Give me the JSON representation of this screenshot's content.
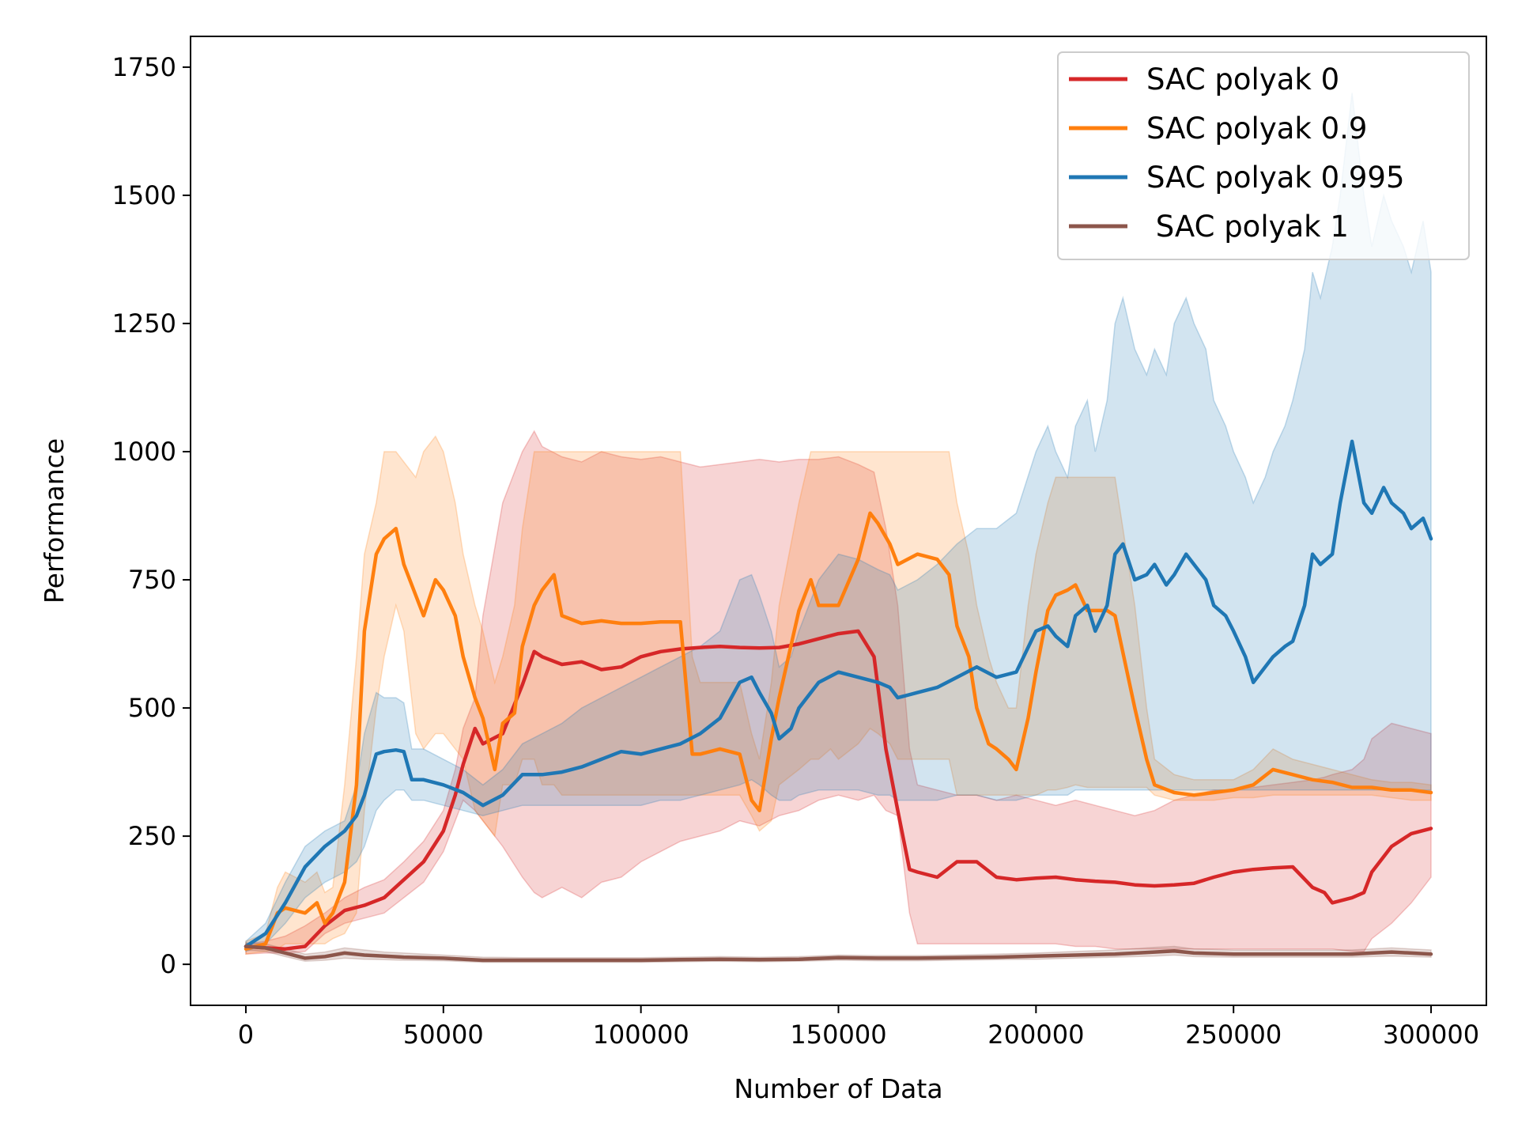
{
  "chart_data": {
    "type": "line",
    "title": "",
    "xlabel": "Number of Data",
    "ylabel": "Performance",
    "xlim": [
      -14000,
      314000
    ],
    "ylim": [
      -80,
      1810
    ],
    "xticks": [
      0,
      50000,
      100000,
      150000,
      200000,
      250000,
      300000
    ],
    "xtick_labels": [
      "0",
      "50000",
      "100000",
      "150000",
      "200000",
      "250000",
      "300000"
    ],
    "yticks": [
      0,
      250,
      500,
      750,
      1000,
      1250,
      1500,
      1750
    ],
    "ytick_labels": [
      "0",
      "250",
      "500",
      "750",
      "1000",
      "1250",
      "1500",
      "1750"
    ],
    "grid": false,
    "legend_position": "top-right",
    "series": [
      {
        "name": "SAC polyak 0",
        "color": "#d62728",
        "x": [
          0,
          5000,
          10000,
          15000,
          20000,
          25000,
          30000,
          35000,
          40000,
          45000,
          50000,
          53000,
          55000,
          58000,
          60000,
          65000,
          70000,
          73000,
          75000,
          80000,
          85000,
          90000,
          95000,
          100000,
          105000,
          110000,
          115000,
          120000,
          125000,
          130000,
          135000,
          140000,
          145000,
          150000,
          155000,
          159000,
          162000,
          165000,
          168000,
          170000,
          175000,
          180000,
          185000,
          190000,
          195000,
          200000,
          205000,
          210000,
          215000,
          220000,
          225000,
          230000,
          235000,
          240000,
          245000,
          250000,
          255000,
          260000,
          265000,
          270000,
          273000,
          275000,
          280000,
          283000,
          285000,
          290000,
          295000,
          300000
        ],
        "y": [
          35,
          32,
          30,
          35,
          75,
          105,
          115,
          130,
          165,
          200,
          260,
          330,
          390,
          460,
          430,
          450,
          545,
          610,
          600,
          585,
          590,
          575,
          580,
          600,
          610,
          615,
          618,
          620,
          618,
          617,
          618,
          625,
          635,
          645,
          650,
          600,
          420,
          300,
          185,
          180,
          170,
          200,
          200,
          170,
          165,
          168,
          170,
          165,
          162,
          160,
          155,
          153,
          155,
          158,
          170,
          180,
          185,
          188,
          190,
          150,
          140,
          120,
          130,
          140,
          180,
          230,
          255,
          265
        ],
        "lower": [
          20,
          22,
          22,
          25,
          60,
          80,
          90,
          100,
          130,
          160,
          220,
          280,
          320,
          300,
          280,
          230,
          170,
          140,
          130,
          150,
          130,
          160,
          170,
          200,
          220,
          240,
          250,
          260,
          280,
          270,
          290,
          300,
          320,
          330,
          320,
          330,
          300,
          290,
          100,
          40,
          40,
          40,
          40,
          40,
          40,
          40,
          40,
          35,
          35,
          30,
          30,
          30,
          30,
          30,
          30,
          30,
          30,
          30,
          30,
          30,
          30,
          30,
          25,
          25,
          50,
          80,
          120,
          170
        ],
        "upper": [
          40,
          45,
          55,
          75,
          100,
          130,
          150,
          165,
          200,
          240,
          300,
          380,
          460,
          520,
          680,
          900,
          1000,
          1040,
          1010,
          990,
          980,
          1000,
          990,
          985,
          990,
          980,
          970,
          975,
          980,
          985,
          980,
          985,
          985,
          990,
          975,
          960,
          850,
          700,
          420,
          350,
          340,
          330,
          330,
          320,
          330,
          320,
          310,
          320,
          310,
          300,
          290,
          300,
          320,
          330,
          340,
          340,
          345,
          350,
          355,
          360,
          365,
          370,
          380,
          400,
          440,
          470,
          460,
          450
        ]
      },
      {
        "name": "SAC polyak 0.9",
        "color": "#ff7f0e",
        "x": [
          0,
          5000,
          8000,
          10000,
          15000,
          18000,
          20000,
          22000,
          25000,
          28000,
          30000,
          33000,
          35000,
          38000,
          40000,
          43000,
          45000,
          48000,
          50000,
          53000,
          55000,
          58000,
          60000,
          63000,
          65000,
          68000,
          70000,
          73000,
          75000,
          78000,
          80000,
          85000,
          90000,
          95000,
          100000,
          105000,
          110000,
          113000,
          115000,
          120000,
          125000,
          128000,
          130000,
          133000,
          135000,
          140000,
          143000,
          145000,
          148000,
          150000,
          155000,
          157000,
          158000,
          160000,
          163000,
          165000,
          170000,
          175000,
          178000,
          180000,
          183000,
          185000,
          188000,
          190000,
          193000,
          195000,
          198000,
          200000,
          203000,
          205000,
          208000,
          210000,
          213000,
          215000,
          218000,
          220000,
          225000,
          228000,
          230000,
          235000,
          240000,
          245000,
          250000,
          255000,
          260000,
          265000,
          270000,
          275000,
          280000,
          285000,
          290000,
          295000,
          300000
        ],
        "y": [
          30,
          40,
          100,
          110,
          100,
          120,
          80,
          100,
          160,
          350,
          650,
          800,
          830,
          850,
          780,
          720,
          680,
          750,
          730,
          680,
          600,
          520,
          480,
          380,
          470,
          490,
          620,
          700,
          730,
          760,
          680,
          665,
          670,
          665,
          665,
          668,
          668,
          410,
          410,
          420,
          410,
          320,
          300,
          440,
          520,
          690,
          750,
          700,
          700,
          700,
          790,
          850,
          880,
          860,
          820,
          780,
          800,
          790,
          760,
          660,
          600,
          500,
          430,
          420,
          400,
          380,
          480,
          570,
          690,
          720,
          730,
          740,
          690,
          690,
          690,
          680,
          500,
          400,
          350,
          335,
          330,
          335,
          340,
          350,
          380,
          370,
          360,
          355,
          345,
          345,
          340,
          340,
          335
        ],
        "lower": [
          20,
          25,
          30,
          40,
          40,
          40,
          40,
          50,
          60,
          100,
          300,
          500,
          600,
          700,
          650,
          450,
          420,
          450,
          450,
          420,
          400,
          300,
          280,
          250,
          350,
          350,
          400,
          400,
          350,
          350,
          330,
          330,
          330,
          330,
          330,
          330,
          330,
          330,
          330,
          330,
          330,
          290,
          260,
          280,
          350,
          380,
          400,
          400,
          420,
          400,
          430,
          450,
          460,
          450,
          430,
          400,
          400,
          400,
          400,
          330,
          330,
          330,
          330,
          330,
          330,
          330,
          330,
          330,
          340,
          340,
          345,
          350,
          345,
          345,
          345,
          345,
          345,
          345,
          330,
          320,
          320,
          320,
          325,
          325,
          330,
          330,
          330,
          330,
          330,
          330,
          325,
          320,
          320
        ],
        "upper": [
          45,
          60,
          150,
          180,
          160,
          180,
          140,
          150,
          350,
          600,
          800,
          900,
          1000,
          1000,
          980,
          950,
          1000,
          1030,
          1000,
          900,
          800,
          700,
          650,
          550,
          600,
          700,
          850,
          1000,
          1000,
          1000,
          1000,
          1000,
          1000,
          1000,
          1000,
          1000,
          1000,
          600,
          550,
          550,
          550,
          450,
          400,
          550,
          700,
          900,
          1000,
          1000,
          1000,
          1000,
          1000,
          1000,
          1000,
          1000,
          1000,
          1000,
          1000,
          1000,
          1000,
          900,
          800,
          700,
          600,
          550,
          500,
          500,
          700,
          800,
          900,
          950,
          950,
          950,
          950,
          950,
          950,
          950,
          700,
          500,
          400,
          370,
          360,
          360,
          360,
          380,
          420,
          400,
          390,
          380,
          370,
          360,
          355,
          355,
          350
        ]
      },
      {
        "name": "SAC polyak 0.995",
        "color": "#1f77b4",
        "x": [
          0,
          5000,
          10000,
          15000,
          20000,
          25000,
          28000,
          30000,
          33000,
          35000,
          38000,
          40000,
          42000,
          45000,
          50000,
          55000,
          60000,
          65000,
          70000,
          75000,
          80000,
          85000,
          90000,
          95000,
          100000,
          105000,
          110000,
          115000,
          120000,
          125000,
          128000,
          130000,
          133000,
          135000,
          138000,
          140000,
          145000,
          150000,
          155000,
          160000,
          163000,
          165000,
          170000,
          175000,
          180000,
          185000,
          190000,
          195000,
          200000,
          203000,
          205000,
          208000,
          210000,
          213000,
          215000,
          218000,
          220000,
          222000,
          225000,
          228000,
          230000,
          233000,
          235000,
          238000,
          240000,
          243000,
          245000,
          248000,
          250000,
          253000,
          255000,
          258000,
          260000,
          263000,
          265000,
          268000,
          270000,
          272000,
          275000,
          277000,
          280000,
          283000,
          285000,
          288000,
          290000,
          293000,
          295000,
          298000,
          300000
        ],
        "y": [
          35,
          60,
          120,
          190,
          230,
          260,
          290,
          330,
          410,
          415,
          418,
          415,
          360,
          360,
          350,
          335,
          310,
          330,
          370,
          370,
          375,
          385,
          400,
          415,
          410,
          420,
          430,
          450,
          480,
          550,
          560,
          530,
          490,
          440,
          460,
          500,
          550,
          570,
          560,
          550,
          540,
          520,
          530,
          540,
          560,
          580,
          560,
          570,
          650,
          660,
          640,
          620,
          680,
          700,
          650,
          700,
          800,
          820,
          750,
          760,
          780,
          740,
          760,
          800,
          780,
          750,
          700,
          680,
          650,
          600,
          550,
          580,
          600,
          620,
          630,
          700,
          800,
          780,
          800,
          900,
          1020,
          900,
          880,
          930,
          900,
          880,
          850,
          870,
          830
        ],
        "lower": [
          25,
          40,
          80,
          130,
          160,
          180,
          200,
          230,
          300,
          320,
          340,
          340,
          320,
          320,
          310,
          300,
          290,
          300,
          310,
          310,
          310,
          310,
          310,
          310,
          310,
          320,
          320,
          330,
          340,
          350,
          360,
          350,
          330,
          320,
          320,
          330,
          340,
          340,
          340,
          330,
          330,
          320,
          320,
          320,
          330,
          330,
          320,
          320,
          330,
          330,
          330,
          330,
          340,
          340,
          340,
          340,
          340,
          340,
          340,
          340,
          340,
          340,
          340,
          340,
          340,
          340,
          340,
          340,
          340,
          340,
          340,
          340,
          340,
          340,
          340,
          340,
          340,
          340,
          340,
          340,
          340,
          340,
          340,
          340,
          340,
          340,
          340,
          340,
          340
        ],
        "upper": [
          45,
          80,
          160,
          230,
          260,
          280,
          350,
          450,
          530,
          520,
          520,
          510,
          420,
          420,
          400,
          380,
          350,
          380,
          430,
          450,
          470,
          500,
          520,
          540,
          560,
          580,
          600,
          620,
          650,
          750,
          760,
          720,
          650,
          580,
          600,
          650,
          750,
          800,
          790,
          770,
          760,
          730,
          750,
          780,
          820,
          850,
          850,
          880,
          1000,
          1050,
          1000,
          950,
          1050,
          1100,
          1000,
          1100,
          1250,
          1300,
          1200,
          1150,
          1200,
          1150,
          1250,
          1300,
          1250,
          1200,
          1100,
          1050,
          1000,
          950,
          900,
          950,
          1000,
          1050,
          1100,
          1200,
          1350,
          1300,
          1400,
          1500,
          1700,
          1500,
          1400,
          1500,
          1450,
          1400,
          1350,
          1450,
          1350
        ]
      },
      {
        "name": " SAC polyak 1",
        "color": "#8c564b",
        "x": [
          0,
          5000,
          10000,
          15000,
          20000,
          25000,
          30000,
          35000,
          40000,
          50000,
          60000,
          70000,
          80000,
          90000,
          100000,
          110000,
          120000,
          130000,
          140000,
          150000,
          160000,
          170000,
          180000,
          190000,
          200000,
          210000,
          220000,
          230000,
          235000,
          240000,
          250000,
          260000,
          270000,
          280000,
          285000,
          290000,
          295000,
          300000
        ],
        "y": [
          35,
          32,
          22,
          12,
          15,
          22,
          18,
          16,
          14,
          12,
          8,
          8,
          8,
          8,
          8,
          9,
          10,
          9,
          10,
          13,
          12,
          12,
          13,
          14,
          16,
          18,
          20,
          24,
          26,
          22,
          20,
          20,
          20,
          20,
          22,
          24,
          22,
          20
        ],
        "lower": [
          28,
          25,
          15,
          6,
          8,
          12,
          10,
          9,
          8,
          7,
          4,
          4,
          4,
          4,
          4,
          5,
          6,
          5,
          6,
          8,
          7,
          7,
          8,
          9,
          10,
          12,
          14,
          16,
          18,
          15,
          14,
          14,
          14,
          14,
          15,
          16,
          15,
          14
        ],
        "upper": [
          42,
          40,
          30,
          20,
          24,
          32,
          28,
          24,
          22,
          18,
          14,
          13,
          13,
          13,
          13,
          14,
          15,
          14,
          15,
          18,
          17,
          17,
          18,
          20,
          22,
          25,
          28,
          33,
          35,
          30,
          28,
          28,
          28,
          28,
          30,
          32,
          30,
          28
        ]
      }
    ]
  }
}
